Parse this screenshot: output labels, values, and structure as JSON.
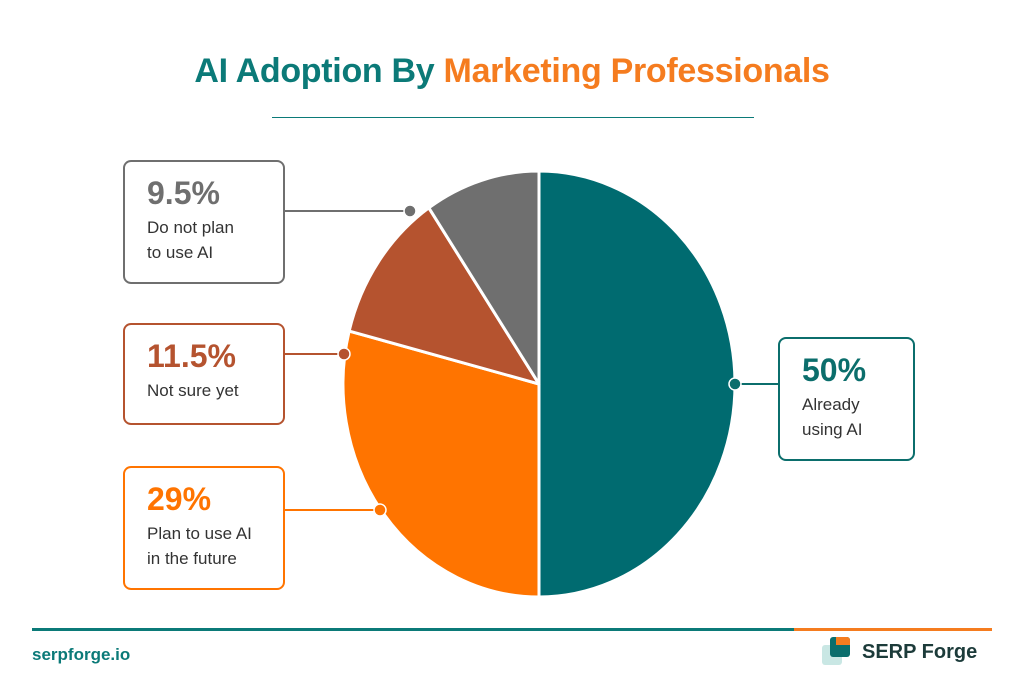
{
  "title_part1": "AI Adoption By",
  "title_part2": "Marketing Professionals",
  "colors": {
    "teal": "#0b7a78",
    "orange": "#f57c1f",
    "rust": "#b5532f",
    "gray": "#6f6f6f"
  },
  "chart_data": {
    "type": "pie",
    "title": "AI Adoption By Marketing Professionals",
    "slices": [
      {
        "label": "Already using AI",
        "value": 50,
        "display": "50%",
        "color": "#006b70"
      },
      {
        "label": "Plan to use AI in the future",
        "value": 29,
        "display": "29%",
        "color": "#ff7400"
      },
      {
        "label": "Not sure yet",
        "value": 11.5,
        "display": "11.5%",
        "color": "#b5532f"
      },
      {
        "label": "Do not plan to use AI",
        "value": 9.5,
        "display": "9.5%",
        "color": "#6f6f6f"
      }
    ]
  },
  "labels": {
    "already": {
      "pct": "50%",
      "text": "Already\nusing AI"
    },
    "plan": {
      "pct": "29%",
      "text": "Plan to use AI\nin the future"
    },
    "notsure": {
      "pct": "11.5%",
      "text": "Not sure yet"
    },
    "donot": {
      "pct": "9.5%",
      "text": "Do not plan\nto use AI"
    }
  },
  "footer": {
    "site": "serpforge.io",
    "brand": "SERP Forge"
  }
}
